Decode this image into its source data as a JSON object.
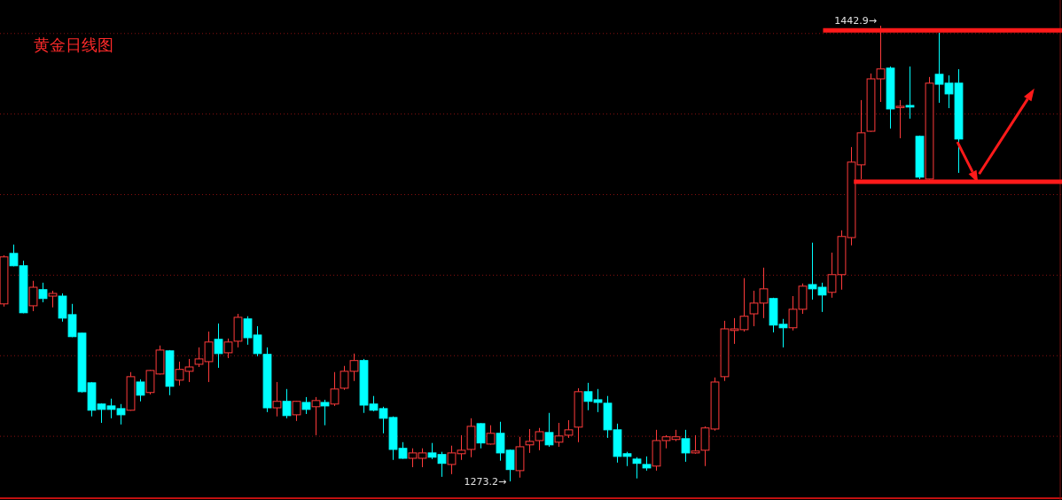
{
  "chart_data": {
    "type": "candlestick",
    "title": "黄金日线图",
    "categories": [
      null,
      null,
      null,
      null,
      null,
      null,
      null,
      null,
      null,
      null,
      null,
      null,
      null,
      null,
      null,
      null,
      null,
      null,
      null,
      null,
      null,
      null,
      null,
      null,
      null,
      null,
      null,
      null,
      null,
      null,
      null,
      null,
      null,
      null,
      null,
      null,
      null,
      null,
      null,
      null,
      null,
      null,
      null,
      null,
      null,
      null,
      null,
      null,
      null,
      null,
      null,
      null,
      null,
      null,
      null,
      null,
      null,
      null,
      null,
      null,
      null,
      null,
      null,
      null,
      null,
      null,
      null,
      null,
      null,
      null,
      null,
      null,
      null,
      null,
      null,
      null,
      null,
      null,
      null,
      null,
      null,
      null,
      null,
      null,
      null,
      null,
      null,
      null,
      null,
      null,
      null,
      null,
      null,
      null,
      null,
      null,
      null,
      null,
      null
    ],
    "ohlc": [
      [
        1339.3,
        1357.4,
        1338.3,
        1356.8
      ],
      [
        1358.1,
        1361.4,
        1353.3,
        1353.5
      ],
      [
        1353.5,
        1355.4,
        1335.8,
        1336.0
      ],
      [
        1338.6,
        1347.9,
        1336.6,
        1345.5
      ],
      [
        1344.6,
        1347.2,
        1339.9,
        1341.3
      ],
      [
        1342.2,
        1344.2,
        1338.0,
        1343.2
      ],
      [
        1342.2,
        1343.2,
        1332.7,
        1334.0
      ],
      [
        1335.3,
        1339.3,
        1326.9,
        1327.1
      ],
      [
        1328.4,
        1328.6,
        1306.3,
        1306.6
      ],
      [
        1309.9,
        1310.2,
        1297.4,
        1299.7
      ],
      [
        1302.0,
        1302.3,
        1295.0,
        1300.0
      ],
      [
        1301.3,
        1304.0,
        1296.7,
        1300.0
      ],
      [
        1300.3,
        1302.0,
        1294.4,
        1298.0
      ],
      [
        1299.7,
        1313.9,
        1299.5,
        1312.2
      ],
      [
        1310.2,
        1311.2,
        1303.0,
        1305.3
      ],
      [
        1306.3,
        1314.7,
        1305.6,
        1314.5
      ],
      [
        1313.2,
        1323.8,
        1313.0,
        1322.1
      ],
      [
        1321.8,
        1322.1,
        1305.3,
        1308.6
      ],
      [
        1310.9,
        1317.8,
        1308.9,
        1314.9
      ],
      [
        1314.2,
        1318.8,
        1310.2,
        1315.8
      ],
      [
        1316.8,
        1323.1,
        1315.8,
        1318.8
      ],
      [
        1317.8,
        1329.0,
        1310.2,
        1325.1
      ],
      [
        1326.1,
        1332.0,
        1315.5,
        1320.8
      ],
      [
        1321.1,
        1326.4,
        1319.1,
        1325.1
      ],
      [
        1325.4,
        1335.6,
        1323.1,
        1334.3
      ],
      [
        1333.7,
        1334.7,
        1324.1,
        1326.7
      ],
      [
        1327.7,
        1331.0,
        1319.8,
        1320.8
      ],
      [
        1320.5,
        1323.1,
        1299.0,
        1300.6
      ],
      [
        1300.6,
        1310.2,
        1297.4,
        1303.0
      ],
      [
        1303.0,
        1307.6,
        1296.7,
        1297.7
      ],
      [
        1298.0,
        1303.2,
        1295.7,
        1303.0
      ],
      [
        1302.6,
        1304.6,
        1298.3,
        1300.0
      ],
      [
        1301.0,
        1304.6,
        1290.4,
        1303.3
      ],
      [
        1302.6,
        1303.6,
        1294.1,
        1301.3
      ],
      [
        1302.0,
        1313.9,
        1301.3,
        1307.6
      ],
      [
        1307.9,
        1316.2,
        1307.3,
        1314.2
      ],
      [
        1314.2,
        1320.8,
        1310.6,
        1318.2
      ],
      [
        1318.2,
        1318.8,
        1298.7,
        1301.6
      ],
      [
        1302.0,
        1305.0,
        1299.3,
        1299.7
      ],
      [
        1300.3,
        1301.0,
        1291.1,
        1296.7
      ],
      [
        1297.0,
        1297.4,
        1281.2,
        1285.1
      ],
      [
        1285.5,
        1287.8,
        1281.6,
        1281.8
      ],
      [
        1281.8,
        1285.5,
        1278.5,
        1283.8
      ],
      [
        1281.8,
        1285.5,
        1278.5,
        1283.8
      ],
      [
        1283.8,
        1287.5,
        1281.5,
        1282.2
      ],
      [
        1283.2,
        1284.2,
        1274.9,
        1279.9
      ],
      [
        1279.5,
        1286.5,
        1275.9,
        1283.8
      ],
      [
        1283.5,
        1290.4,
        1281.2,
        1284.8
      ],
      [
        1285.1,
        1296.7,
        1282.2,
        1293.7
      ],
      [
        1294.7,
        1294.9,
        1285.5,
        1287.5
      ],
      [
        1287.1,
        1294.1,
        1286.9,
        1291.1
      ],
      [
        1291.1,
        1295.4,
        1280.9,
        1283.8
      ],
      [
        1284.8,
        1285.1,
        1273.2,
        1277.6
      ],
      [
        1277.2,
        1289.8,
        1274.6,
        1286.1
      ],
      [
        1286.8,
        1292.7,
        1283.8,
        1288.1
      ],
      [
        1288.4,
        1293.1,
        1284.8,
        1291.7
      ],
      [
        1291.4,
        1298.7,
        1286.1,
        1286.8
      ],
      [
        1287.8,
        1295.0,
        1286.1,
        1290.1
      ],
      [
        1290.4,
        1296.0,
        1289.4,
        1292.4
      ],
      [
        1293.4,
        1307.9,
        1287.8,
        1306.6
      ],
      [
        1306.6,
        1309.9,
        1299.7,
        1303.0
      ],
      [
        1303.6,
        1307.6,
        1299.0,
        1302.6
      ],
      [
        1302.3,
        1305.0,
        1289.4,
        1292.4
      ],
      [
        1292.4,
        1294.7,
        1280.2,
        1282.5
      ],
      [
        1283.5,
        1284.2,
        1278.9,
        1282.5
      ],
      [
        1281.5,
        1282.2,
        1274.3,
        1279.9
      ],
      [
        1279.5,
        1282.5,
        1277.2,
        1278.2
      ],
      [
        1278.9,
        1292.4,
        1277.2,
        1288.4
      ],
      [
        1288.4,
        1290.4,
        1285.5,
        1289.8
      ],
      [
        1288.8,
        1292.4,
        1288.2,
        1289.8
      ],
      [
        1289.1,
        1292.4,
        1280.5,
        1283.8
      ],
      [
        1283.8,
        1290.4,
        1283.5,
        1284.5
      ],
      [
        1284.8,
        1293.7,
        1278.9,
        1293.1
      ],
      [
        1292.7,
        1311.9,
        1292.1,
        1310.2
      ],
      [
        1312.2,
        1333.0,
        1310.6,
        1330.0
      ],
      [
        1329.4,
        1334.0,
        1324.4,
        1330.0
      ],
      [
        1329.7,
        1348.9,
        1329.0,
        1334.7
      ],
      [
        1335.6,
        1344.2,
        1331.0,
        1339.6
      ],
      [
        1339.6,
        1352.8,
        1334.0,
        1344.9
      ],
      [
        1341.3,
        1341.6,
        1328.7,
        1331.4
      ],
      [
        1331.7,
        1333.7,
        1323.1,
        1330.4
      ],
      [
        1330.4,
        1342.2,
        1329.4,
        1337.3
      ],
      [
        1337.3,
        1346.9,
        1335.6,
        1345.9
      ],
      [
        1346.5,
        1362.1,
        1340.9,
        1344.9
      ],
      [
        1345.5,
        1347.2,
        1336.3,
        1342.6
      ],
      [
        1343.6,
        1358.4,
        1341.6,
        1350.2
      ],
      [
        1350.2,
        1366.7,
        1344.6,
        1364.4
      ],
      [
        1364.0,
        1397.7,
        1361.1,
        1392.1
      ],
      [
        1391.1,
        1415.2,
        1385.8,
        1403.0
      ],
      [
        1403.6,
        1425.1,
        1403.4,
        1423.1
      ],
      [
        1423.1,
        1442.9,
        1414.5,
        1426.8
      ],
      [
        1427.1,
        1427.7,
        1404.6,
        1411.9
      ],
      [
        1412.6,
        1415.2,
        1401.0,
        1412.9
      ],
      [
        1413.2,
        1427.7,
        1408.3,
        1412.6
      ],
      [
        1401.7,
        1402.0,
        1385.8,
        1386.5
      ],
      [
        1385.8,
        1423.8,
        1385.6,
        1421.5
      ],
      [
        1424.8,
        1440.3,
        1414.2,
        1421.1
      ],
      [
        1421.5,
        1424.4,
        1412.2,
        1417.5
      ],
      [
        1421.5,
        1426.7,
        1388.1,
        1400.7
      ]
    ],
    "yticks": [
      {
        "value": 1290,
        "label": null
      },
      {
        "value": 1320,
        "label": null
      },
      {
        "value": 1350,
        "label": null
      },
      {
        "value": 1380,
        "label": null
      },
      {
        "value": 1410,
        "label": null
      },
      {
        "value": 1440,
        "label": null
      }
    ],
    "grid": "y",
    "ref_lines": [
      {
        "axis": "y",
        "value": 1441.2,
        "color": "#ff1a1a"
      },
      {
        "axis": "y",
        "value": 1384.8,
        "color": "#ff1a1a"
      }
    ],
    "annotations": [
      "1442.9→",
      "1273.2→"
    ]
  }
}
